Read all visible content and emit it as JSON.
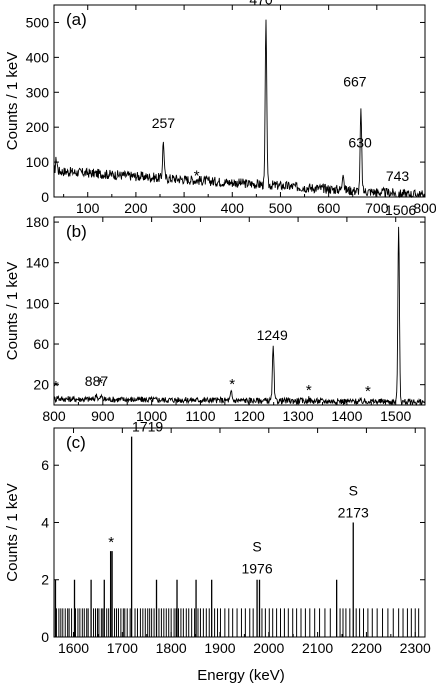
{
  "xlabel": "Energy (keV)",
  "chart_data": [
    {
      "type": "line",
      "panel_label": "(a)",
      "ylabel": "Counts / 1 keV",
      "xlim": [
        30,
        800
      ],
      "ylim": [
        0,
        550
      ],
      "xticks": [
        100,
        200,
        300,
        400,
        500,
        600,
        700,
        800
      ],
      "yticks": [
        0,
        100,
        200,
        300,
        400,
        500
      ],
      "background": {
        "start": 75,
        "end": 5,
        "noise": 14
      },
      "peaks": [
        {
          "x": 35,
          "y": 110
        },
        {
          "x": 257,
          "y": 180
        },
        {
          "x": 470,
          "y": 535
        },
        {
          "x": 630,
          "y": 130
        },
        {
          "x": 667,
          "y": 300
        },
        {
          "x": 743,
          "y": 28
        }
      ],
      "annotations": [
        {
          "text": "257",
          "x": 257,
          "y": 180
        },
        {
          "text": "470",
          "x": 470,
          "y": 535
        },
        {
          "text": "630",
          "x": 630,
          "y": 130
        },
        {
          "text": "667",
          "x": 667,
          "y": 300
        },
        {
          "text": "743",
          "x": 743,
          "y": 28
        },
        {
          "text": "*",
          "x": 322,
          "y": 30
        }
      ]
    },
    {
      "type": "line",
      "panel_label": "(b)",
      "ylabel": "Counts / 1 keV",
      "xlim": [
        800,
        1560
      ],
      "ylim": [
        0,
        185
      ],
      "xticks": [
        800,
        900,
        1000,
        1100,
        1200,
        1300,
        1400,
        1500
      ],
      "yticks": [
        20,
        60,
        100,
        140,
        180
      ],
      "background": {
        "start": 6,
        "end": 3,
        "noise": 3
      },
      "peaks": [
        {
          "x": 808,
          "y": 8
        },
        {
          "x": 887,
          "y": 11
        },
        {
          "x": 897,
          "y": 9
        },
        {
          "x": 1163,
          "y": 14
        },
        {
          "x": 1249,
          "y": 58
        },
        {
          "x": 1322,
          "y": 8
        },
        {
          "x": 1445,
          "y": 7
        },
        {
          "x": 1506,
          "y": 180
        }
      ],
      "annotations": [
        {
          "text": "887",
          "x": 887,
          "y": 11
        },
        {
          "text": "1249",
          "x": 1249,
          "y": 58
        },
        {
          "text": "1506",
          "x": 1506,
          "y": 180
        },
        {
          "text": "*",
          "x": 808,
          "y": 8
        },
        {
          "text": "*",
          "x": 897,
          "y": 9
        },
        {
          "text": "*",
          "x": 1163,
          "y": 14
        },
        {
          "text": "*",
          "x": 1322,
          "y": 8
        },
        {
          "text": "*",
          "x": 1445,
          "y": 7
        }
      ]
    },
    {
      "type": "bar",
      "panel_label": "(c)",
      "ylabel": "Counts / 1 keV",
      "xlim": [
        1560,
        2320
      ],
      "ylim": [
        0,
        7.3
      ],
      "xticks": [
        1600,
        1700,
        1800,
        1900,
        2000,
        2100,
        2200,
        2300
      ],
      "yticks": [
        0,
        2,
        4,
        6
      ],
      "bars": [
        {
          "x": 1719,
          "y": 7
        },
        {
          "x": 2173,
          "y": 4
        },
        {
          "x": 1676,
          "y": 3
        },
        {
          "x": 1679,
          "y": 3
        },
        {
          "x": 1976,
          "y": 2
        },
        {
          "x": 1981,
          "y": 2
        },
        {
          "x": 1563,
          "y": 2
        },
        {
          "x": 1602,
          "y": 2
        },
        {
          "x": 1636,
          "y": 2
        },
        {
          "x": 1663,
          "y": 2
        },
        {
          "x": 1770,
          "y": 2
        },
        {
          "x": 1812,
          "y": 2
        },
        {
          "x": 1851,
          "y": 2
        },
        {
          "x": 1883,
          "y": 2
        },
        {
          "x": 2139,
          "y": 2
        }
      ],
      "ones": [
        1565,
        1570,
        1574,
        1578,
        1583,
        1588,
        1591,
        1596,
        1604,
        1609,
        1613,
        1618,
        1622,
        1627,
        1630,
        1641,
        1645,
        1649,
        1652,
        1657,
        1660,
        1668,
        1672,
        1684,
        1688,
        1692,
        1697,
        1702,
        1705,
        1710,
        1716,
        1726,
        1731,
        1737,
        1742,
        1747,
        1752,
        1756,
        1760,
        1765,
        1775,
        1780,
        1785,
        1790,
        1795,
        1800,
        1806,
        1810,
        1815,
        1820,
        1825,
        1831,
        1836,
        1842,
        1848,
        1855,
        1860,
        1866,
        1872,
        1878,
        1889,
        1895,
        1901,
        1910,
        1918,
        1926,
        1935,
        1944,
        1952,
        1961,
        1968,
        1986,
        1993,
        2001,
        2008,
        2016,
        2024,
        2032,
        2040,
        2049,
        2057,
        2066,
        2075,
        2084,
        2094,
        2104,
        2115,
        2126,
        2146,
        2152,
        2158,
        2166,
        2179,
        2186,
        2194,
        2203,
        2212,
        2222,
        2233,
        2244,
        2255,
        2266,
        2275,
        2284,
        2292,
        2300,
        2307
      ],
      "annotations": [
        {
          "text": "1719",
          "x": 1719,
          "y": 7
        },
        {
          "text": "2173",
          "x": 2173,
          "y": 4
        },
        {
          "text": "S",
          "x": 2173,
          "y": 4
        },
        {
          "text": "1976",
          "x": 1976,
          "y": 2
        },
        {
          "text": "S",
          "x": 1976,
          "y": 2
        },
        {
          "text": "*",
          "x": 1677,
          "y": 3
        }
      ]
    }
  ]
}
